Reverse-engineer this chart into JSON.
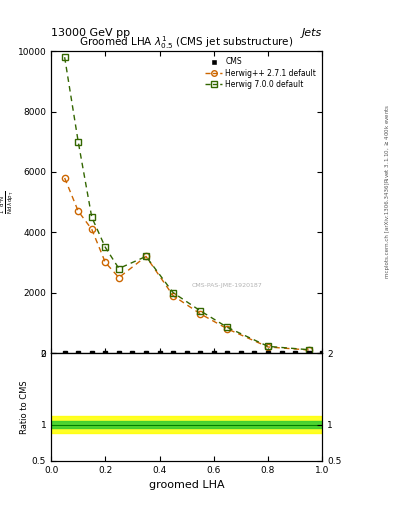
{
  "title": "13000 GeV pp",
  "title_right": "Jets",
  "plot_title": "Groomed LHA $\\lambda^{1}_{0.5}$ (CMS jet substructure)",
  "xlabel": "groomed LHA",
  "ylabel_main": "$\\frac{1}{\\mathrm{N}} \\frac{\\mathrm{d}^2\\mathrm{N}}{\\mathrm{d}\\lambda\\, \\mathrm{d}p_\\mathrm{T}}$",
  "ylabel_ratio": "Ratio to CMS",
  "right_label_top": "Rivet 3.1.10, $\\geq$400k events",
  "right_label_bot": "mcplots.cern.ch [arXiv:1306.3436]",
  "watermark": "CMS-PAS-JME-1920187",
  "cms_x": [
    0.05,
    0.1,
    0.15,
    0.2,
    0.25,
    0.3,
    0.35,
    0.4,
    0.45,
    0.5,
    0.55,
    0.6,
    0.65,
    0.7,
    0.75,
    0.8,
    0.85,
    0.9,
    0.95,
    1.0
  ],
  "cms_y": [
    0,
    0,
    0,
    0,
    0,
    0,
    0,
    0,
    0,
    0,
    0,
    0,
    0,
    0,
    0,
    0,
    0,
    0,
    0,
    0
  ],
  "herwig_pp_x": [
    0.05,
    0.1,
    0.15,
    0.2,
    0.25,
    0.35,
    0.45,
    0.55,
    0.65,
    0.8,
    0.95
  ],
  "herwig_pp_y": [
    5800,
    4700,
    4100,
    3000,
    2500,
    3200,
    1900,
    1300,
    800,
    200,
    100
  ],
  "herwig7_x": [
    0.05,
    0.1,
    0.15,
    0.2,
    0.25,
    0.35,
    0.45,
    0.55,
    0.65,
    0.8,
    0.95
  ],
  "herwig7_y": [
    9800,
    7000,
    4500,
    3500,
    2800,
    3200,
    2000,
    1400,
    850,
    220,
    110
  ],
  "herwig_pp_color": "#cc6600",
  "herwig7_color": "#336600",
  "cms_color": "black",
  "ylim_main": [
    0,
    10000
  ],
  "ylim_ratio": [
    0.5,
    2.0
  ],
  "xlim": [
    0,
    1
  ],
  "ratio_yellow_lo": 0.88,
  "ratio_yellow_hi": 1.12,
  "ratio_green_lo": 0.95,
  "ratio_green_hi": 1.05
}
